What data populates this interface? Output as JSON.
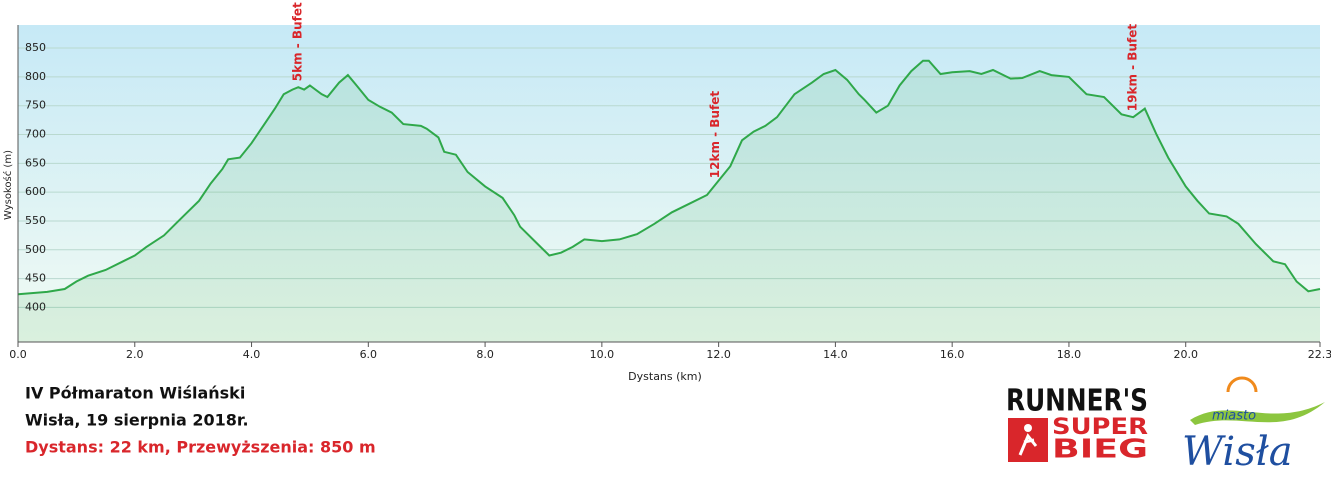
{
  "chart_data": {
    "type": "area",
    "x_label": "Dystans  (km)",
    "y_label": "Wysokość (m)",
    "x": [
      0.0,
      0.5,
      0.8,
      1.0,
      1.2,
      1.5,
      1.8,
      2.0,
      2.2,
      2.5,
      2.7,
      2.9,
      3.1,
      3.3,
      3.5,
      3.6,
      3.8,
      4.0,
      4.2,
      4.4,
      4.55,
      4.7,
      4.8,
      4.9,
      5.0,
      5.2,
      5.3,
      5.5,
      5.65,
      5.8,
      6.0,
      6.2,
      6.4,
      6.6,
      6.9,
      7.0,
      7.2,
      7.3,
      7.5,
      7.7,
      8.0,
      8.3,
      8.5,
      8.6,
      8.9,
      9.1,
      9.3,
      9.5,
      9.7,
      10.0,
      10.3,
      10.6,
      10.9,
      11.2,
      11.5,
      11.8,
      12.0,
      12.2,
      12.4,
      12.6,
      12.8,
      13.0,
      13.3,
      13.6,
      13.8,
      14.0,
      14.2,
      14.4,
      14.5,
      14.7,
      14.9,
      15.1,
      15.3,
      15.5,
      15.6,
      15.8,
      16.0,
      16.3,
      16.5,
      16.7,
      17.0,
      17.2,
      17.5,
      17.7,
      18.0,
      18.3,
      18.6,
      18.9,
      19.1,
      19.3,
      19.5,
      19.7,
      20.0,
      20.2,
      20.4,
      20.7,
      20.9,
      21.2,
      21.5,
      21.7,
      21.9,
      22.1,
      22.3
    ],
    "values": [
      423,
      427,
      432,
      445,
      455,
      465,
      480,
      490,
      505,
      525,
      545,
      565,
      585,
      615,
      640,
      657,
      660,
      685,
      715,
      745,
      770,
      778,
      782,
      778,
      785,
      770,
      765,
      790,
      803,
      785,
      760,
      748,
      738,
      718,
      715,
      710,
      695,
      670,
      665,
      635,
      610,
      590,
      560,
      540,
      510,
      490,
      495,
      505,
      518,
      515,
      518,
      527,
      545,
      565,
      580,
      595,
      620,
      645,
      690,
      705,
      715,
      730,
      770,
      790,
      805,
      812,
      795,
      770,
      760,
      738,
      750,
      785,
      810,
      828,
      828,
      805,
      808,
      810,
      805,
      812,
      797,
      798,
      810,
      803,
      800,
      770,
      765,
      735,
      730,
      745,
      700,
      660,
      610,
      585,
      563,
      558,
      545,
      510,
      480,
      475,
      445,
      428,
      432
    ],
    "color": "#2fa84a",
    "xlim": [
      0,
      22.3
    ],
    "ylim": [
      340,
      890
    ],
    "xticks": [
      {
        "value": 0,
        "label": "0.0"
      },
      {
        "value": 2,
        "label": "2.0"
      },
      {
        "value": 4,
        "label": "4.0"
      },
      {
        "value": 6,
        "label": "6.0"
      },
      {
        "value": 8,
        "label": "8.0"
      },
      {
        "value": 10,
        "label": "10.0"
      },
      {
        "value": 12,
        "label": "12.0"
      },
      {
        "value": 14,
        "label": "14.0"
      },
      {
        "value": 16,
        "label": "16.0"
      },
      {
        "value": 18,
        "label": "18.0"
      },
      {
        "value": 20,
        "label": "20.0"
      },
      22.3
    ],
    "yticks": [
      400,
      450,
      500,
      550,
      600,
      650,
      700,
      750,
      800,
      850
    ],
    "grid": true,
    "annotations": [
      {
        "text": "5km - Bufet",
        "x": 4.8
      },
      {
        "text": "12km - Bufet",
        "x": 11.95
      },
      {
        "text": "19km - Bufet",
        "x": 19.1
      }
    ]
  },
  "caption": {
    "title": "IV Półmaraton Wiślański",
    "date": "Wisła, 19 sierpnia 2018r.",
    "stats": "Dystans: 22 km, Przewyższenia: 850 m"
  },
  "logos": {
    "runners": "RUNNER'S",
    "super": "SUPER",
    "bieg": "BIEG",
    "miasto": "miasto",
    "wisla": "Wisła"
  }
}
